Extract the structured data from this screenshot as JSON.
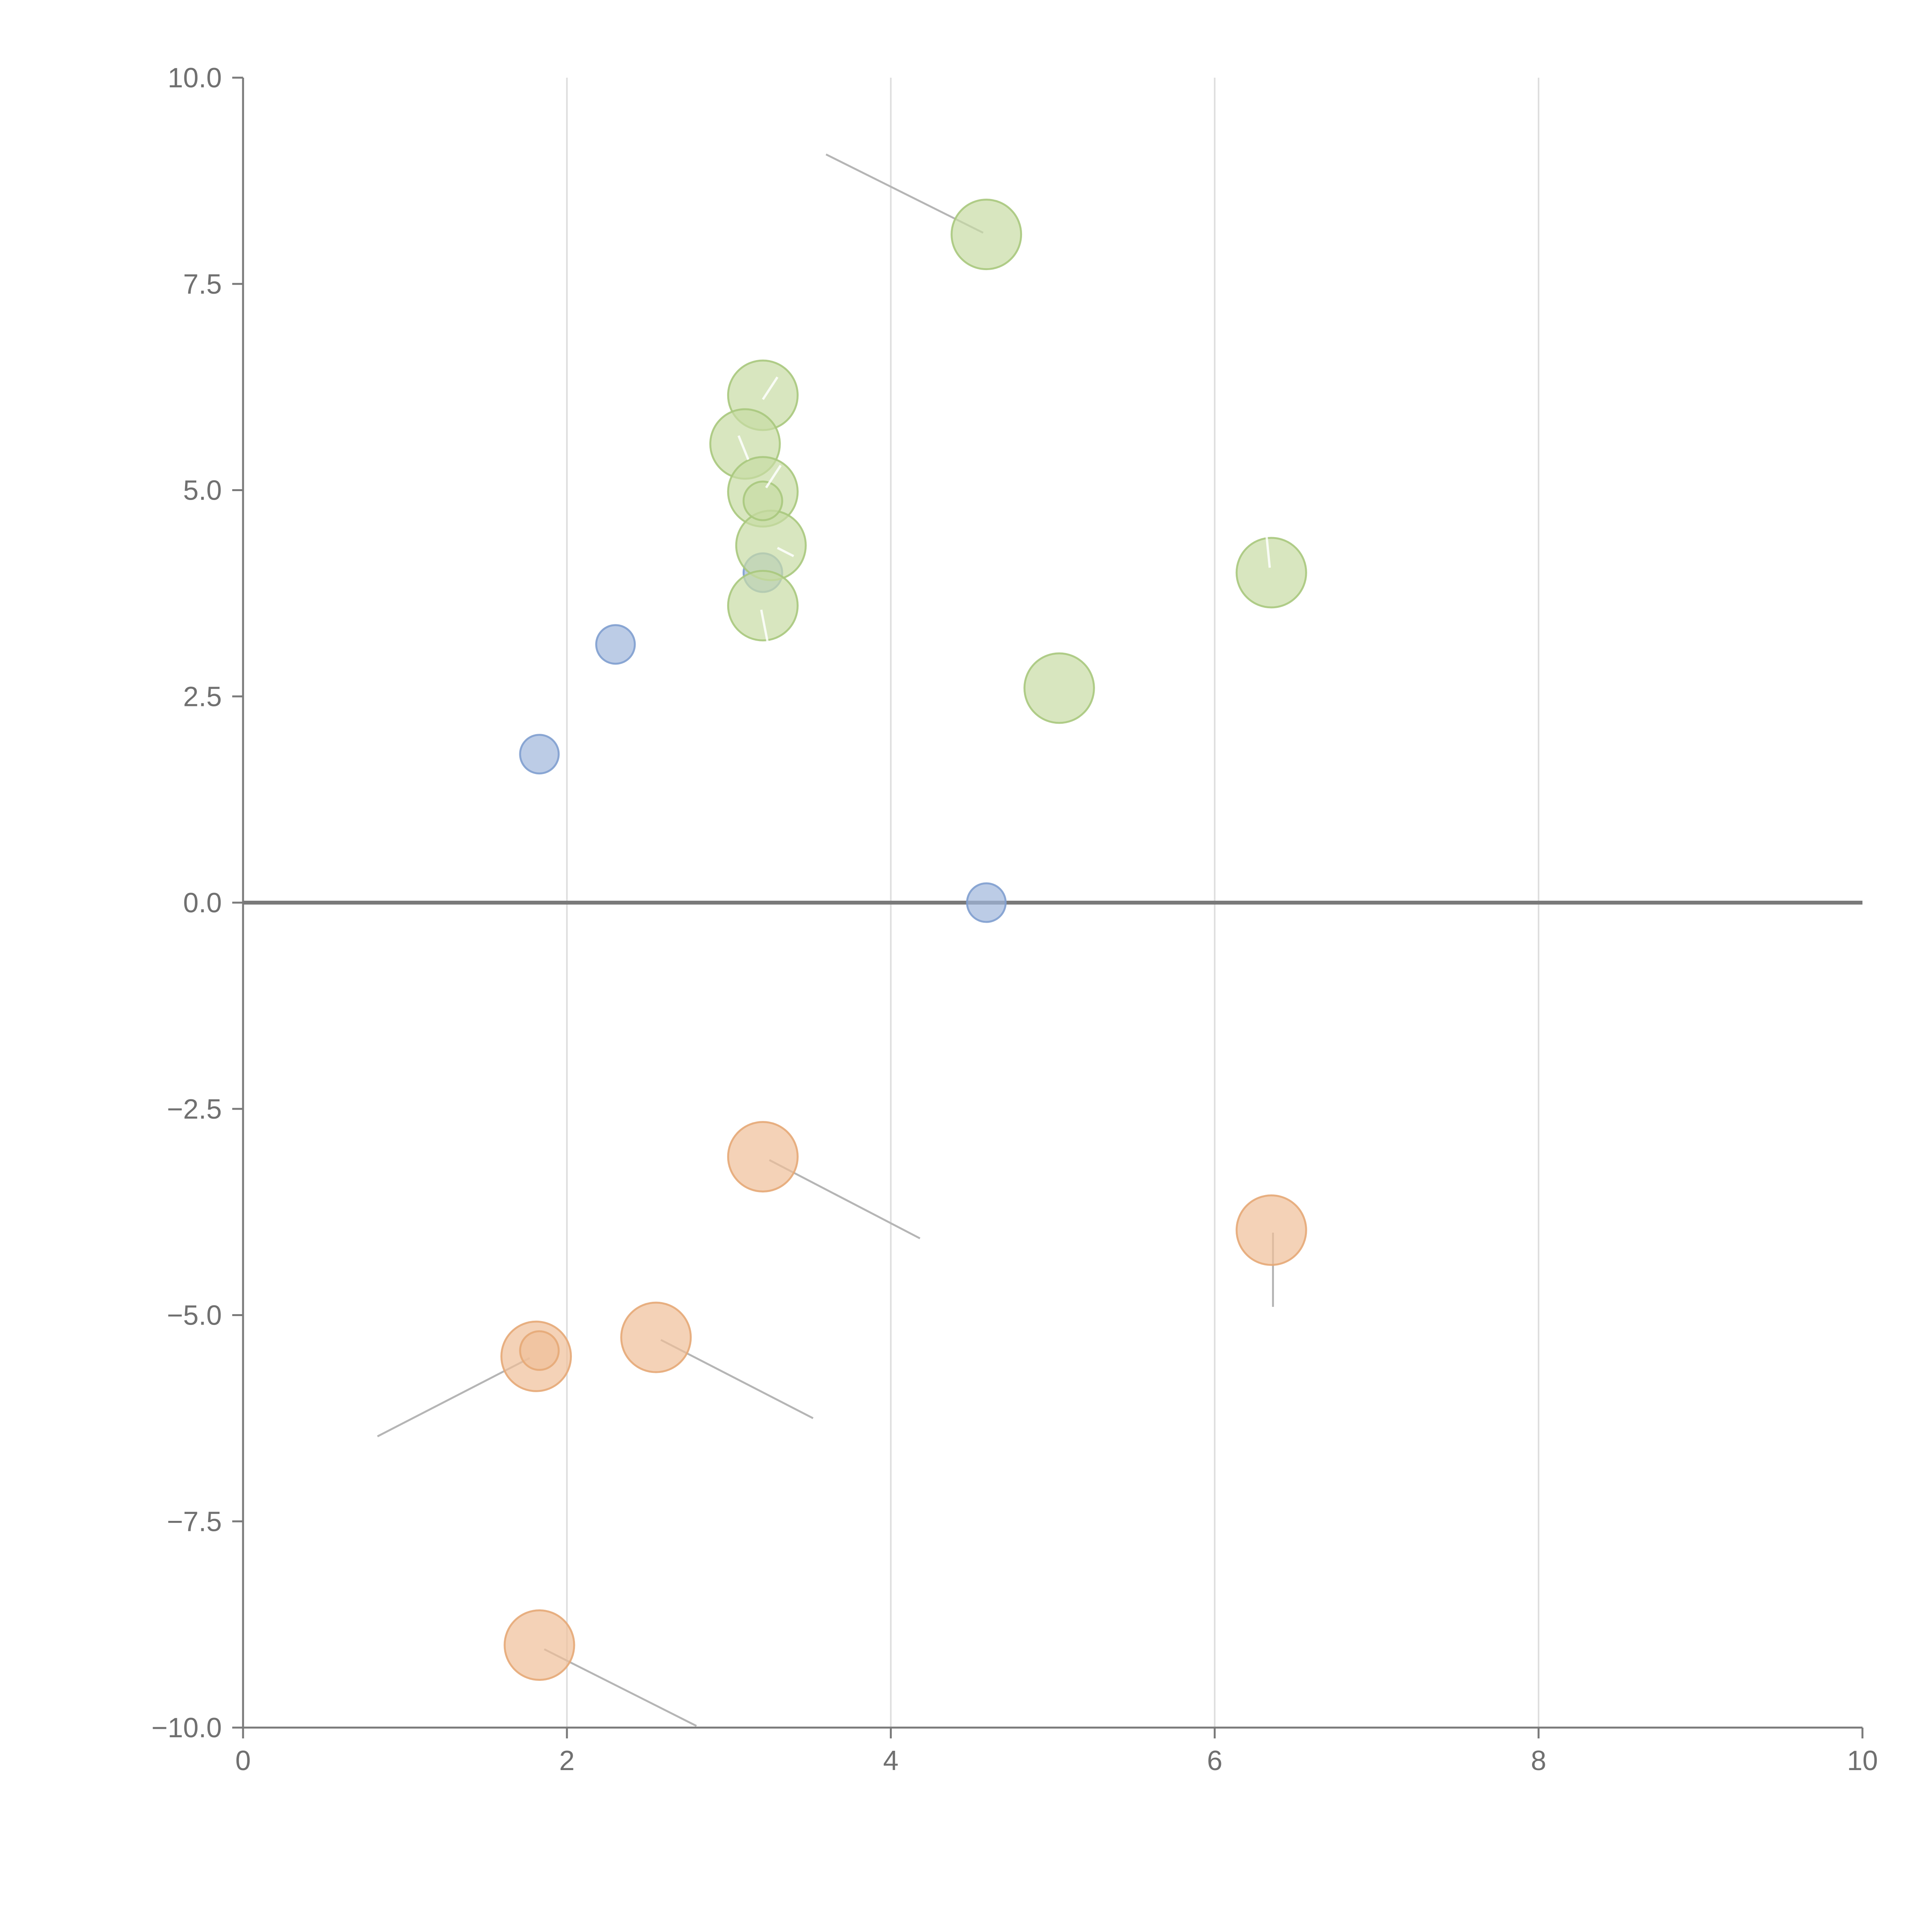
{
  "chart_data": {
    "type": "scatter",
    "title": "",
    "xlabel": "",
    "ylabel": "",
    "xlim": [
      0,
      10
    ],
    "ylim": [
      -10,
      10
    ],
    "x_ticks": [
      "0",
      "2",
      "4",
      "6",
      "8",
      "10"
    ],
    "y_ticks": [
      "10.0",
      "7.5",
      "5.0",
      "2.5",
      "0.0",
      "−2.5",
      "−5.0",
      "−7.5",
      "−10.0"
    ],
    "x_tick_values": [
      0,
      2,
      4,
      6,
      8,
      10
    ],
    "y_tick_values": [
      10,
      7.5,
      5,
      2.5,
      0,
      -2.5,
      -5,
      -7.5,
      -10
    ],
    "grid": "vertical",
    "legend": "none",
    "series": [
      {
        "color": "#9fb7dc",
        "stroke": "#7f9fcf",
        "size": "small",
        "points": [
          {
            "x": 1.83,
            "y": 1.8
          },
          {
            "x": 2.3,
            "y": 3.13
          },
          {
            "x": 3.21,
            "y": 4.0
          },
          {
            "x": 4.59,
            "y": 0.0
          }
        ]
      },
      {
        "color": "#c7dba4",
        "stroke": "#a9c87d",
        "size": "large",
        "points": [
          {
            "x": 4.59,
            "y": 8.1
          },
          {
            "x": 3.21,
            "y": 6.15
          },
          {
            "x": 3.1,
            "y": 5.56
          },
          {
            "x": 3.21,
            "y": 4.98
          },
          {
            "x": 3.26,
            "y": 4.33
          },
          {
            "x": 3.21,
            "y": 3.6
          },
          {
            "x": 6.35,
            "y": 4.0
          },
          {
            "x": 5.04,
            "y": 2.6
          },
          {
            "x": 3.21,
            "y": 4.87,
            "size": "small"
          }
        ]
      },
      {
        "color": "#efbf98",
        "stroke": "#e6a877",
        "size": "large",
        "points": [
          {
            "x": 3.21,
            "y": -3.08
          },
          {
            "x": 6.35,
            "y": -3.97
          },
          {
            "x": 2.55,
            "y": -5.27
          },
          {
            "x": 1.81,
            "y": -5.5
          },
          {
            "x": 1.83,
            "y": -9.0
          },
          {
            "x": 1.83,
            "y": -5.43,
            "size": "small"
          }
        ]
      }
    ],
    "leader_lines": [
      {
        "from": [
          4.57,
          8.12
        ],
        "to": [
          3.6,
          9.07
        ]
      },
      {
        "from": [
          3.25,
          -3.12
        ],
        "to": [
          4.18,
          -4.07
        ]
      },
      {
        "from": [
          6.36,
          -4.0
        ],
        "to": [
          6.36,
          -4.9
        ]
      },
      {
        "from": [
          2.58,
          -5.3
        ],
        "to": [
          3.52,
          -6.25
        ]
      },
      {
        "from": [
          1.77,
          -5.52
        ],
        "to": [
          0.83,
          -6.47
        ]
      },
      {
        "from": [
          1.86,
          -9.05
        ],
        "to": [
          2.8,
          -9.98
        ]
      }
    ],
    "white_marks": [
      {
        "from": [
          3.21,
          6.1
        ],
        "to": [
          3.3,
          6.37
        ]
      },
      {
        "from": [
          3.06,
          5.66
        ],
        "to": [
          3.12,
          5.37
        ]
      },
      {
        "from": [
          3.23,
          5.03
        ],
        "to": [
          3.32,
          5.3
        ]
      },
      {
        "from": [
          3.3,
          4.3
        ],
        "to": [
          3.4,
          4.2
        ]
      },
      {
        "from": [
          3.2,
          3.55
        ],
        "to": [
          3.24,
          3.15
        ]
      },
      {
        "from": [
          6.34,
          4.06
        ],
        "to": [
          6.32,
          4.45
        ]
      }
    ]
  }
}
